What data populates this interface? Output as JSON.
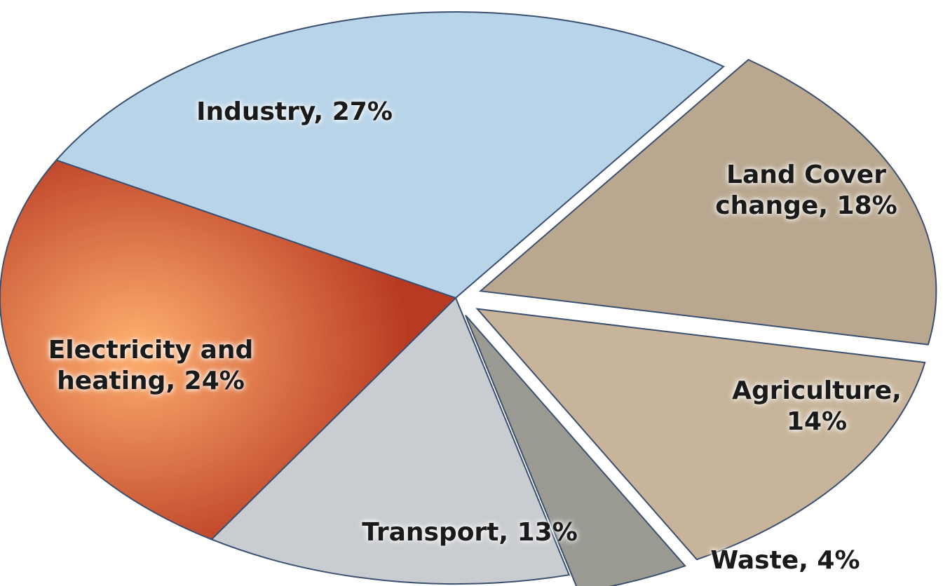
{
  "chart_data": {
    "type": "pie",
    "categories": [
      "Land Cover change, 18%",
      "Agriculture, 14%",
      "Waste, 4%",
      "Transport, 13%",
      "Electricity and heating, 24%",
      "Industry, 27%"
    ],
    "values": [
      18,
      14,
      4,
      13,
      24,
      27
    ],
    "colors": [
      "#b9a78f",
      "#c8b49a",
      "#9a9a92",
      "#c9ccd0",
      "#e0583a",
      "#b8d4e8"
    ],
    "exploded": [
      true,
      true,
      true,
      false,
      false,
      false
    ]
  }
}
